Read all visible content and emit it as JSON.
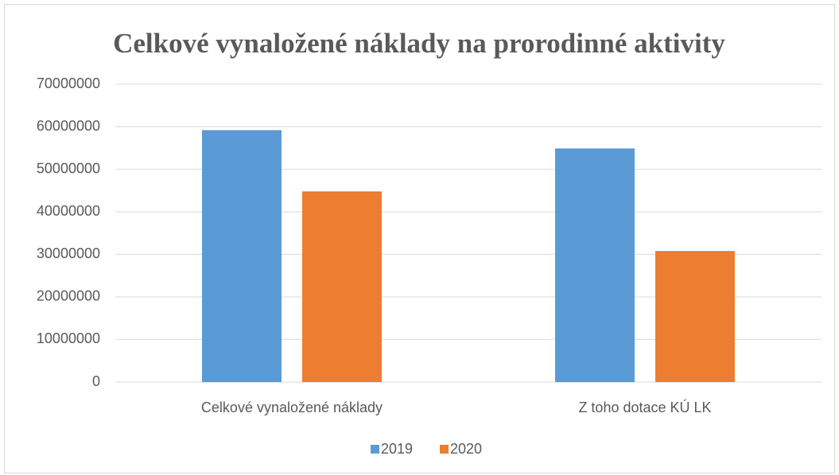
{
  "chart_data": {
    "type": "bar",
    "title": "Celkové vynaložené náklady na prorodinné aktivity",
    "categories": [
      "Celkové vynaložené náklady",
      "Z toho dotace KÚ LK"
    ],
    "series": [
      {
        "name": "2019",
        "color": "#5b9bd5",
        "values": [
          59200000,
          54900000
        ]
      },
      {
        "name": "2020",
        "color": "#ed7d31",
        "values": [
          44800000,
          30800000
        ]
      }
    ],
    "ylim": [
      0,
      70000000
    ],
    "yticks": [
      0,
      10000000,
      20000000,
      30000000,
      40000000,
      50000000,
      60000000,
      70000000
    ],
    "grid": true,
    "legend": "bottom"
  }
}
